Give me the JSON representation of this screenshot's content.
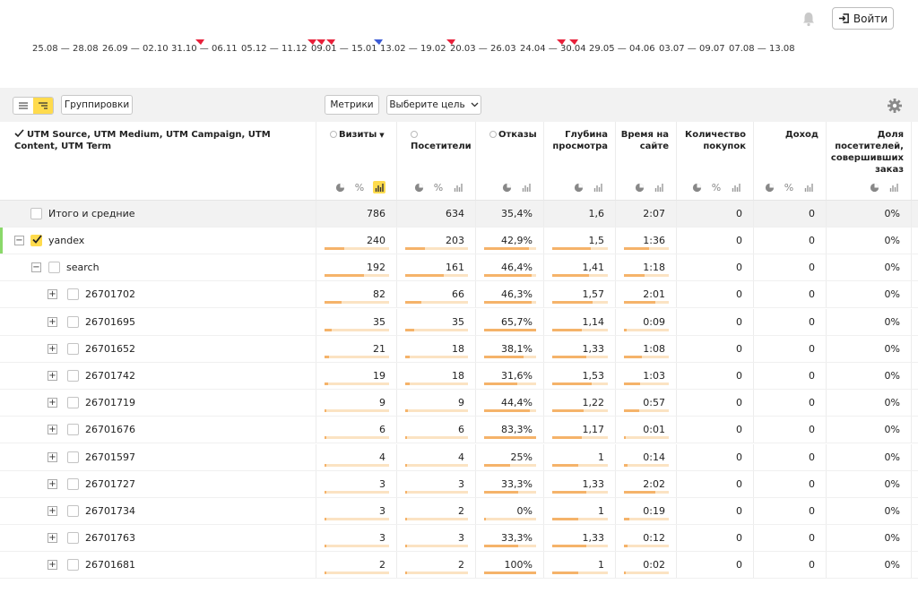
{
  "header": {
    "login_label": "Войти"
  },
  "timeline": {
    "dates": [
      "25.08 — 28.08",
      "26.09 — 02.10",
      "31.10 — 06.11",
      "05.12 — 11.12",
      "09.01 — 15.01",
      "13.02 — 19.02",
      "20.03 — 26.03",
      "24.04 — 30.04",
      "29.05 — 04.06",
      "03.07 — 09.07",
      "07.08 — 13.08"
    ],
    "flag_colors": {
      "red": "#e8203a",
      "blue": "#3b5bd6"
    }
  },
  "toolbar": {
    "grouping_label": "Группировки",
    "metrics_label": "Метрики",
    "goal_label": "Выберите цель"
  },
  "table": {
    "dimension_header": "UTM Source, UTM Medium, UTM Campaign, UTM Content, UTM Term",
    "columns": [
      {
        "label": "Визиты",
        "radio": true,
        "sort": "▼"
      },
      {
        "label": "Посетители",
        "radio": true
      },
      {
        "label": "Отказы",
        "radio": true
      },
      {
        "label": "Глубина просмотра"
      },
      {
        "label": "Время на сайте"
      },
      {
        "label": "Количество покупок"
      },
      {
        "label": "Доход"
      },
      {
        "label": "Доля посетителей, совершивших заказ"
      }
    ],
    "total": {
      "label": "Итого и средние",
      "values": [
        "786",
        "634",
        "35,4%",
        "1,6",
        "2:07",
        "0",
        "0",
        "0%"
      ]
    },
    "rows": [
      {
        "label": "yandex",
        "level": 0,
        "expander": "−",
        "checked": true,
        "values": [
          "240",
          "203",
          "42,9%",
          "1,5",
          "1:36",
          "0",
          "0",
          "0%"
        ],
        "bars": [
          0.31,
          0.32,
          0.86,
          0.7,
          0.55
        ]
      },
      {
        "label": "search",
        "level": 1,
        "expander": "−",
        "checked": false,
        "values": [
          "192",
          "161",
          "46,4%",
          "1,41",
          "1:18",
          "0",
          "0",
          "0%"
        ],
        "bars": [
          0.61,
          0.62,
          0.92,
          0.66,
          0.45
        ]
      },
      {
        "label": "26701702",
        "level": 2,
        "expander": "+",
        "checked": false,
        "values": [
          "82",
          "66",
          "46,3%",
          "1,57",
          "2:01",
          "0",
          "0",
          "0%"
        ],
        "bars": [
          0.26,
          0.26,
          0.92,
          0.73,
          0.7
        ]
      },
      {
        "label": "26701695",
        "level": 2,
        "expander": "+",
        "checked": false,
        "values": [
          "35",
          "35",
          "65,7%",
          "1,14",
          "0:09",
          "0",
          "0",
          "0%"
        ],
        "bars": [
          0.11,
          0.14,
          1.0,
          0.53,
          0.05
        ]
      },
      {
        "label": "26701652",
        "level": 2,
        "expander": "+",
        "checked": false,
        "values": [
          "21",
          "18",
          "38,1%",
          "1,33",
          "1:08",
          "0",
          "0",
          "0%"
        ],
        "bars": [
          0.07,
          0.07,
          0.76,
          0.62,
          0.39
        ]
      },
      {
        "label": "26701742",
        "level": 2,
        "expander": "+",
        "checked": false,
        "values": [
          "19",
          "18",
          "31,6%",
          "1,53",
          "1:03",
          "0",
          "0",
          "0%"
        ],
        "bars": [
          0.06,
          0.07,
          0.63,
          0.71,
          0.36
        ]
      },
      {
        "label": "26701719",
        "level": 2,
        "expander": "+",
        "checked": false,
        "values": [
          "9",
          "9",
          "44,4%",
          "1,22",
          "0:57",
          "0",
          "0",
          "0%"
        ],
        "bars": [
          0.03,
          0.04,
          0.88,
          0.57,
          0.33
        ]
      },
      {
        "label": "26701676",
        "level": 2,
        "expander": "+",
        "checked": false,
        "values": [
          "6",
          "6",
          "83,3%",
          "1,17",
          "0:01",
          "0",
          "0",
          "0%"
        ],
        "bars": [
          0.02,
          0.02,
          1.0,
          0.54,
          0.01
        ]
      },
      {
        "label": "26701597",
        "level": 2,
        "expander": "+",
        "checked": false,
        "values": [
          "4",
          "4",
          "25%",
          "1",
          "0:14",
          "0",
          "0",
          "0%"
        ],
        "bars": [
          0.01,
          0.02,
          0.5,
          0.46,
          0.08
        ]
      },
      {
        "label": "26701727",
        "level": 2,
        "expander": "+",
        "checked": false,
        "values": [
          "3",
          "3",
          "33,3%",
          "1,33",
          "2:02",
          "0",
          "0",
          "0%"
        ],
        "bars": [
          0.01,
          0.01,
          0.66,
          0.62,
          0.7
        ]
      },
      {
        "label": "26701734",
        "level": 2,
        "expander": "+",
        "checked": false,
        "values": [
          "3",
          "2",
          "0%",
          "1",
          "0:19",
          "0",
          "0",
          "0%"
        ],
        "bars": [
          0.01,
          0.01,
          0.0,
          0.46,
          0.11
        ]
      },
      {
        "label": "26701763",
        "level": 2,
        "expander": "+",
        "checked": false,
        "values": [
          "3",
          "3",
          "33,3%",
          "1,33",
          "0:12",
          "0",
          "0",
          "0%"
        ],
        "bars": [
          0.01,
          0.01,
          0.66,
          0.62,
          0.07
        ]
      },
      {
        "label": "26701681",
        "level": 2,
        "expander": "+",
        "checked": false,
        "values": [
          "2",
          "2",
          "100%",
          "1",
          "0:02",
          "0",
          "0",
          "0%"
        ],
        "bars": [
          0.01,
          0.01,
          1.0,
          0.46,
          0.01
        ]
      }
    ]
  },
  "colors": {
    "accent": "#ffdb4d",
    "bar": "#f5b36a",
    "bar_track": "#fbe3c3",
    "selected_marker": "#8ad86a"
  }
}
